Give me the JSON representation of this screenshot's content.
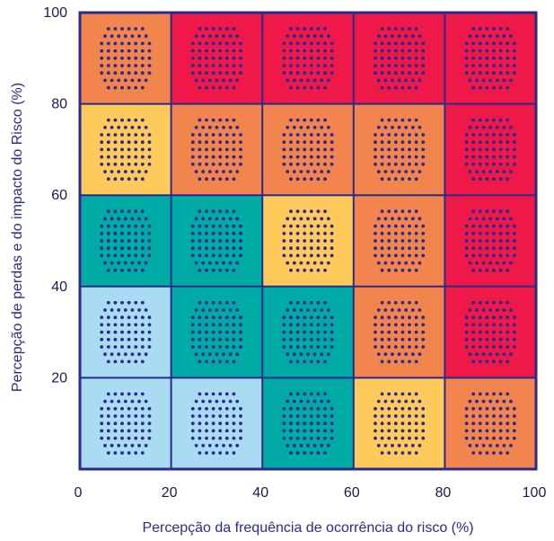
{
  "chart_data": {
    "type": "heatmap",
    "title": "",
    "xlabel": "Percepção da frequência de ocorrência do risco (%)",
    "ylabel": "Percepção de perdas e do impacto do Risco (%)",
    "xlim": [
      0,
      100
    ],
    "ylim": [
      0,
      100
    ],
    "x_ticks": [
      "0",
      "20",
      "40",
      "60",
      "80",
      "100"
    ],
    "y_ticks": [
      "20",
      "40",
      "60",
      "80",
      "100"
    ],
    "grid": true,
    "colors": {
      "very_low": "#a9dcf3",
      "low": "#00aaa5",
      "medium": "#ffca5c",
      "high": "#f2844e",
      "very_high": "#ee1849",
      "dots": "#2a2a8c",
      "border": "#2a2a8c"
    },
    "x_bins": [
      "0-20",
      "20-40",
      "40-60",
      "60-80",
      "80-100"
    ],
    "y_bins": [
      "0-20",
      "20-40",
      "40-60",
      "60-80",
      "80-100"
    ],
    "cells": [
      [
        "very_low",
        "very_low",
        "low",
        "medium",
        "high"
      ],
      [
        "very_low",
        "low",
        "low",
        "high",
        "very_high"
      ],
      [
        "low",
        "low",
        "medium",
        "high",
        "very_high"
      ],
      [
        "medium",
        "high",
        "high",
        "high",
        "very_high"
      ],
      [
        "high",
        "very_high",
        "very_high",
        "very_high",
        "very_high"
      ]
    ]
  }
}
